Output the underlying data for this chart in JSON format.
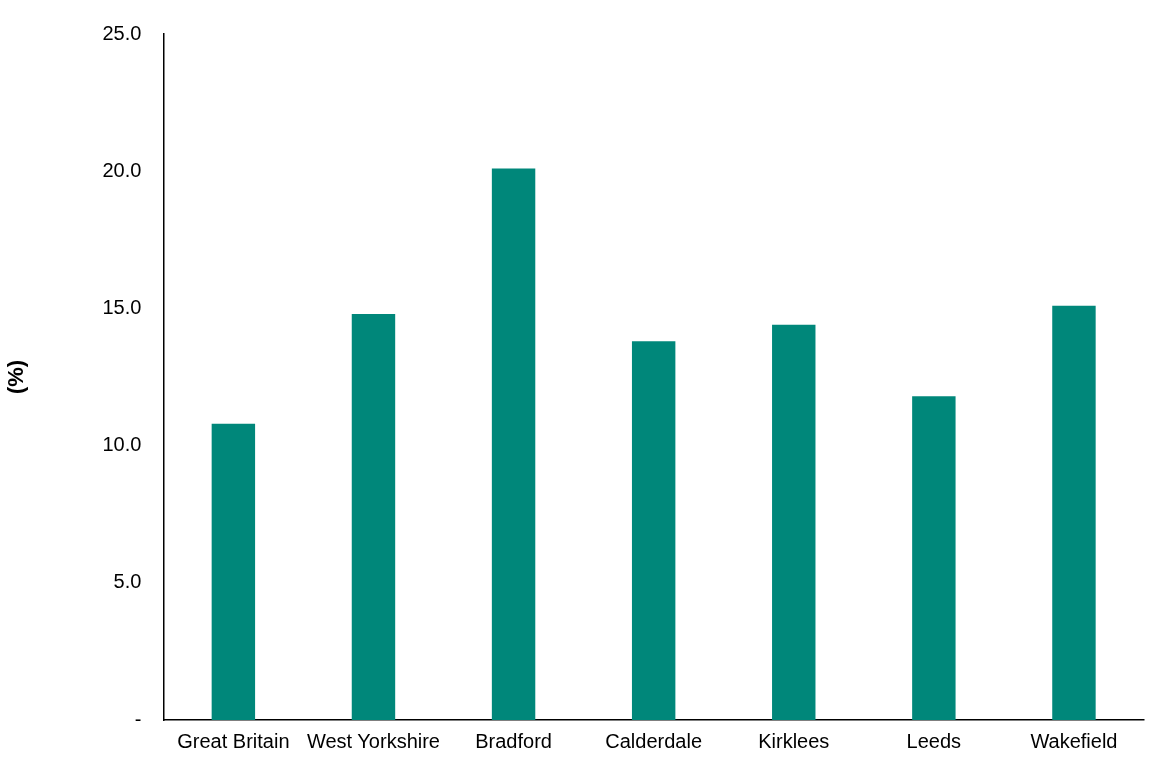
{
  "chart_data": {
    "type": "bar",
    "ylabel": "(%)",
    "categories": [
      "Great Britain",
      "West Yorkshire",
      "Bradford",
      "Calderdale",
      "Kirklees",
      "Leeds",
      "Wakefield"
    ],
    "values": [
      10.8,
      14.8,
      20.1,
      13.8,
      14.4,
      11.8,
      15.1
    ],
    "color": "#00877a",
    "ylim": [
      0,
      25
    ],
    "yticks": [
      {
        "value": 0,
        "label": "-"
      },
      {
        "value": 5,
        "label": "5.0"
      },
      {
        "value": 10,
        "label": "10.0"
      },
      {
        "value": 15,
        "label": "15.0"
      },
      {
        "value": 20,
        "label": "20.0"
      },
      {
        "value": 25,
        "label": "25.0"
      }
    ],
    "grid": false,
    "legend": false
  }
}
